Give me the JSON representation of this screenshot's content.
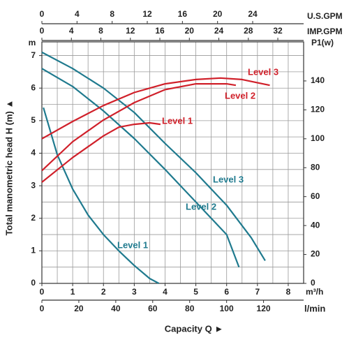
{
  "chart_data": {
    "type": "line",
    "ylabel": "Total manometric head H (m) ▲",
    "xlabel": "Capacity Q ►",
    "x_unit": "m³/h",
    "xlim": [
      0,
      8.5
    ],
    "xticks": [
      0,
      1,
      2,
      3,
      4,
      5,
      6,
      7,
      8
    ],
    "x2_unit": "l/min",
    "x2lim": [
      0,
      141.7
    ],
    "x2ticks": [
      0,
      20,
      40,
      60,
      80,
      100,
      120
    ],
    "x3_unit": "U.S.GPM",
    "x3lim": [
      0,
      29.8
    ],
    "x3ticks": [
      0,
      4,
      8,
      12,
      16,
      20,
      24
    ],
    "x4_unit": "IMP.GPM",
    "x4lim": [
      0,
      35.5
    ],
    "x4ticks": [
      0,
      4,
      8,
      12,
      16,
      20,
      24,
      28,
      32
    ],
    "y_unit": "m",
    "ylim": [
      0,
      7.42
    ],
    "yticks": [
      0,
      1,
      2,
      3,
      4,
      5,
      6,
      7
    ],
    "y2_unit": "P1(w)",
    "y2lim": [
      0,
      167
    ],
    "y2ticks": [
      0,
      20,
      40,
      60,
      80,
      100,
      120,
      140
    ],
    "grid": true,
    "series": [
      {
        "name": "Level 1",
        "color": "#1f7a8e",
        "x": [
          0.05,
          0.5,
          1,
          1.5,
          2,
          2.5,
          3,
          3.5,
          3.8
        ],
        "values": [
          5.4,
          3.95,
          2.9,
          2.1,
          1.5,
          1.0,
          0.55,
          0.15,
          0
        ]
      },
      {
        "name": "Level 2",
        "color": "#1f7a8e",
        "x": [
          0,
          1,
          2,
          3,
          4,
          5,
          6,
          6.4
        ],
        "values": [
          6.6,
          6.05,
          5.3,
          4.45,
          3.5,
          2.5,
          1.5,
          0.5
        ]
      },
      {
        "name": "Level 3",
        "color": "#1f7a8e",
        "x": [
          0,
          1,
          2,
          3,
          4,
          5,
          6,
          6.8,
          7.25
        ],
        "values": [
          7.1,
          6.6,
          6.0,
          5.25,
          4.3,
          3.4,
          2.4,
          1.4,
          0.7
        ]
      },
      {
        "name": "Level 1",
        "color": "#d0202a",
        "axis": "y2",
        "x": [
          0,
          1,
          2,
          2.5,
          3,
          3.5,
          3.85
        ],
        "values": [
          70,
          87,
          102,
          108,
          110,
          111,
          110
        ]
      },
      {
        "name": "Level 2",
        "color": "#d0202a",
        "axis": "y2",
        "x": [
          0,
          1,
          2,
          3,
          4,
          5,
          6,
          6.3
        ],
        "values": [
          78,
          98,
          113,
          125,
          134,
          138,
          138,
          137
        ]
      },
      {
        "name": "Level 3",
        "color": "#d0202a",
        "axis": "y2",
        "x": [
          0,
          1,
          2,
          3,
          4,
          5,
          5.8,
          6.5,
          7.4
        ],
        "values": [
          100,
          112,
          123,
          132,
          138,
          141,
          142,
          141,
          137
        ]
      }
    ]
  }
}
